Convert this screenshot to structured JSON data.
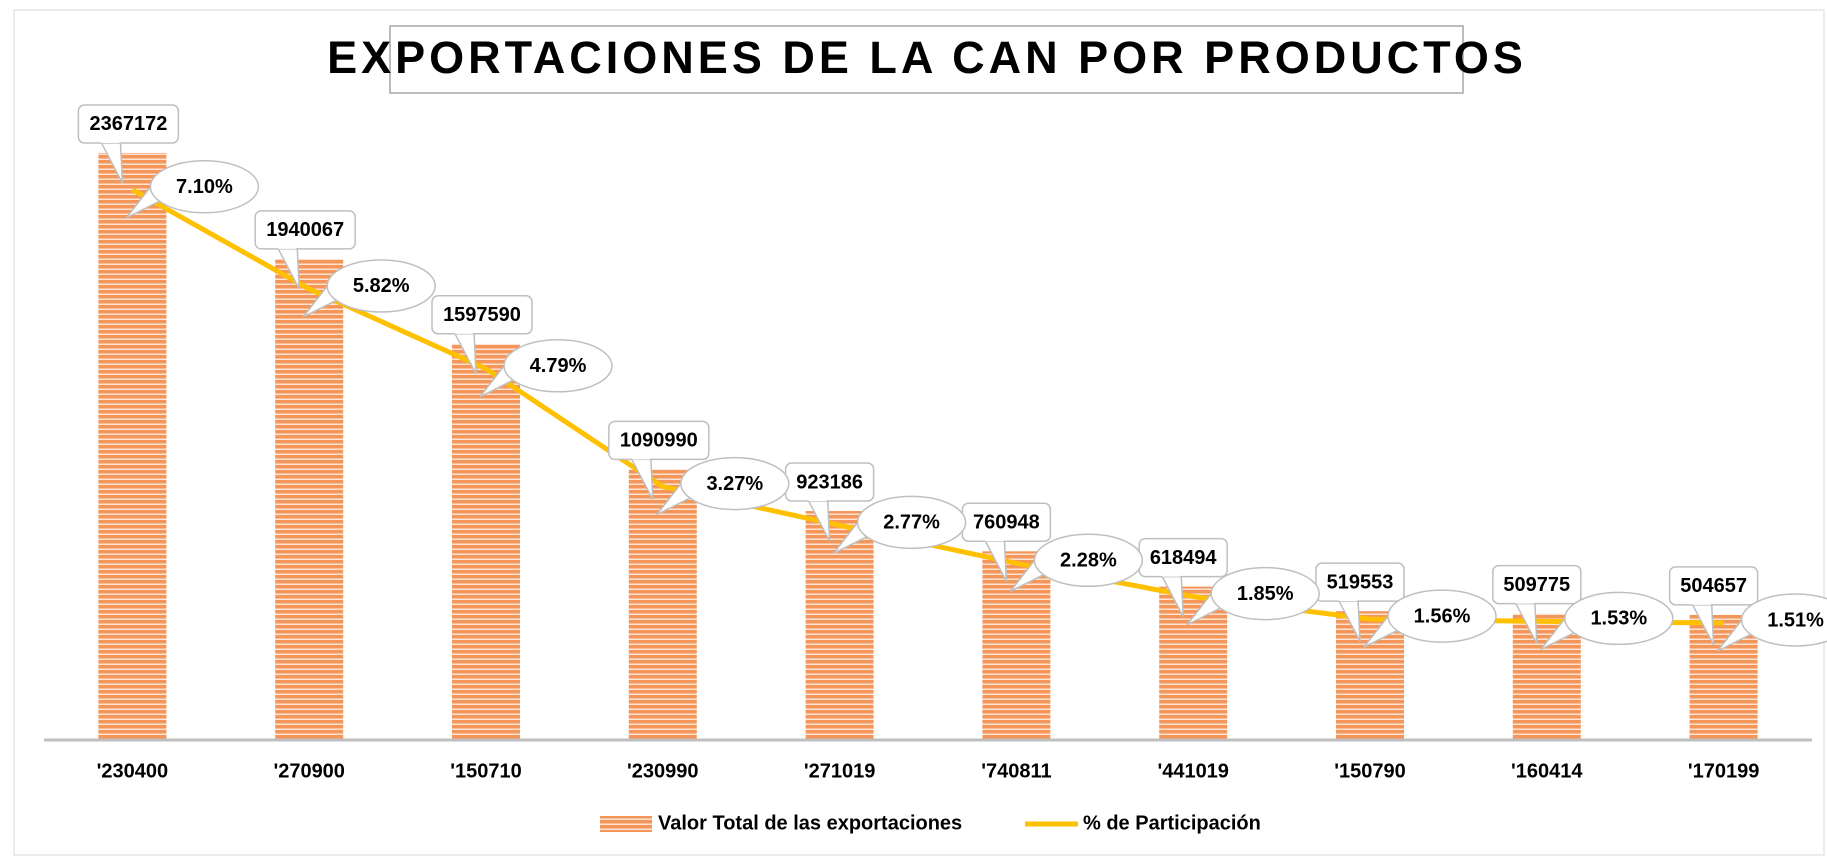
{
  "chart_data": {
    "type": "bar",
    "title": "EXPORTACIONES DE LA CAN POR PRODUCTOS",
    "categories": [
      "'230400",
      "'270900",
      "'150710",
      "'230990",
      "'271019",
      "'740811",
      "'441019",
      "'150790",
      "'160414",
      "'170199"
    ],
    "series": [
      {
        "name": "Valor Total de las exportaciones",
        "type": "bar",
        "color": "#f4965a",
        "values": [
          2367172,
          1940067,
          1597590,
          1090990,
          923186,
          760948,
          618494,
          519553,
          509775,
          504657
        ]
      },
      {
        "name": "% de Participación",
        "type": "line",
        "axis": "y2",
        "color": "#ffc000",
        "values": [
          7.1,
          5.82,
          4.79,
          3.27,
          2.77,
          2.28,
          1.85,
          1.56,
          1.53,
          1.51
        ],
        "value_labels": [
          "7.10%",
          "5.82%",
          "4.79%",
          "3.27%",
          "2.77%",
          "2.28%",
          "1.85%",
          "1.56%",
          "1.53%",
          "1.51%"
        ]
      }
    ],
    "ylim": [
      0,
      2500000
    ],
    "y2lim": [
      0,
      8
    ],
    "grid": false,
    "legend": "bottom"
  }
}
